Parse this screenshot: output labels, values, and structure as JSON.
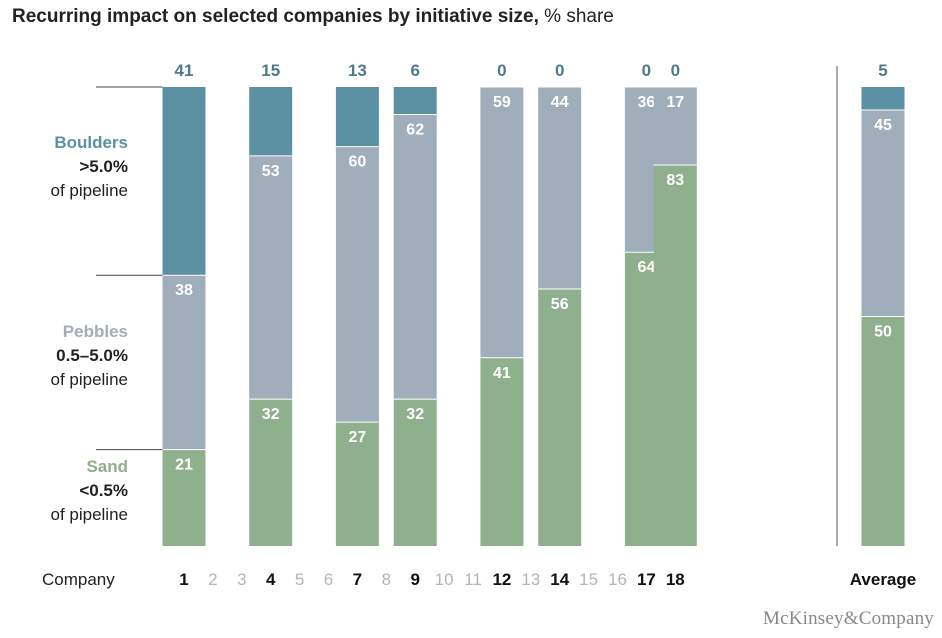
{
  "title": {
    "main": "Recurring impact on selected companies by initiative size,",
    "unit": " % share"
  },
  "brand": "McKinsey&Company",
  "x_axis_label": "Company",
  "colors": {
    "boulders": "#5b91a3",
    "pebbles": "#a0aebb",
    "sand": "#8fb08c",
    "boulders_text": "#5b91a3",
    "pebbles_text": "#a0aebb",
    "sand_text": "#8fb08c",
    "top_label_text": "#4f7a8c",
    "muted_company": "#b5b5b5"
  },
  "chart_data": {
    "type": "bar",
    "stacked": true,
    "ylim": [
      0,
      100
    ],
    "company_axis": [
      "1",
      "2",
      "3",
      "4",
      "5",
      "6",
      "7",
      "8",
      "9",
      "10",
      "11",
      "12",
      "13",
      "14",
      "15",
      "16",
      "17",
      "18"
    ],
    "highlighted_companies": [
      "1",
      "4",
      "7",
      "9",
      "12",
      "14",
      "17",
      "18"
    ],
    "categories": [
      "1",
      "4",
      "7",
      "9",
      "12",
      "14",
      "17",
      "18",
      "Average"
    ],
    "series": [
      {
        "name": "Boulders",
        "values": [
          41,
          15,
          13,
          6,
          0,
          0,
          0,
          0,
          5
        ]
      },
      {
        "name": "Pebbles",
        "values": [
          38,
          53,
          60,
          62,
          59,
          44,
          36,
          17,
          45
        ]
      },
      {
        "name": "Sand",
        "values": [
          21,
          32,
          27,
          32,
          41,
          56,
          64,
          83,
          50
        ]
      }
    ],
    "legend": [
      {
        "name": "Boulders",
        "range": ">5.0%",
        "desc": "of pipeline"
      },
      {
        "name": "Pebbles",
        "range": "0.5–5.0%",
        "desc": "of pipeline"
      },
      {
        "name": "Sand",
        "range": "<0.5%",
        "desc": "of pipeline"
      }
    ],
    "legend_placement": "left"
  }
}
